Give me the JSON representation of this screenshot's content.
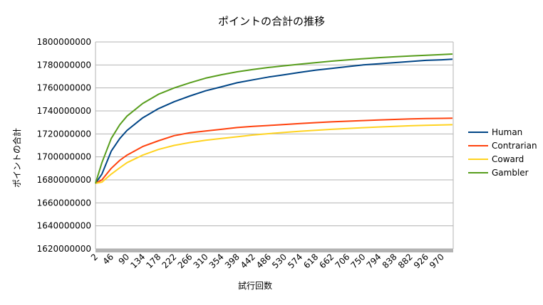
{
  "chart_data": {
    "type": "line",
    "title": "ポイントの合計の推移",
    "xlabel": "試行回数",
    "ylabel": "ポイントの合計",
    "ylim": [
      1620000000,
      1800000000
    ],
    "yticks": [
      1620000000,
      1640000000,
      1660000000,
      1680000000,
      1700000000,
      1720000000,
      1740000000,
      1760000000,
      1780000000,
      1800000000
    ],
    "ytick_labels": [
      "1620000000",
      "1640000000",
      "1660000000",
      "1680000000",
      "1700000000",
      "1720000000",
      "1740000000",
      "1760000000",
      "1780000000",
      "1800000000"
    ],
    "xlim": [
      2,
      1002
    ],
    "xticks": [
      2,
      46,
      90,
      134,
      178,
      222,
      266,
      310,
      354,
      398,
      442,
      486,
      530,
      574,
      618,
      662,
      706,
      750,
      794,
      838,
      882,
      926,
      970
    ],
    "xtick_labels": [
      "2",
      "46",
      "90",
      "134",
      "178",
      "222",
      "266",
      "310",
      "354",
      "398",
      "442",
      "486",
      "530",
      "574",
      "618",
      "662",
      "706",
      "750",
      "794",
      "838",
      "882",
      "926",
      "970"
    ],
    "grid": "horizontal",
    "legend_position": "right",
    "series": [
      {
        "name": "Human",
        "color": "#004586",
        "x": [
          2,
          20,
          46,
          70,
          90,
          134,
          178,
          222,
          266,
          310,
          354,
          398,
          442,
          486,
          530,
          574,
          618,
          662,
          706,
          750,
          794,
          838,
          882,
          926,
          970,
          1000
        ],
        "y": [
          1677000000,
          1685000000,
          1705000000,
          1716000000,
          1723000000,
          1734000000,
          1742000000,
          1748000000,
          1753000000,
          1757500000,
          1761000000,
          1764500000,
          1767000000,
          1769500000,
          1771500000,
          1773500000,
          1775500000,
          1777000000,
          1778500000,
          1780000000,
          1781000000,
          1782000000,
          1783000000,
          1784000000,
          1784500000,
          1785000000
        ]
      },
      {
        "name": "Contrarian",
        "color": "#ff420e",
        "x": [
          2,
          20,
          46,
          70,
          90,
          134,
          178,
          222,
          266,
          310,
          354,
          398,
          442,
          486,
          530,
          574,
          618,
          662,
          706,
          750,
          794,
          838,
          882,
          926,
          970,
          1000
        ],
        "y": [
          1677000000,
          1680000000,
          1690000000,
          1697000000,
          1701500000,
          1709000000,
          1714000000,
          1718500000,
          1721000000,
          1722500000,
          1724000000,
          1725500000,
          1726500000,
          1727300000,
          1728200000,
          1729000000,
          1729800000,
          1730500000,
          1731000000,
          1731600000,
          1732100000,
          1732600000,
          1733000000,
          1733300000,
          1733500000,
          1733600000
        ]
      },
      {
        "name": "Coward",
        "color": "#ffd320",
        "x": [
          2,
          20,
          46,
          70,
          90,
          134,
          178,
          222,
          266,
          310,
          354,
          398,
          442,
          486,
          530,
          574,
          618,
          662,
          706,
          750,
          794,
          838,
          882,
          926,
          970,
          1000
        ],
        "y": [
          1677000000,
          1678000000,
          1685000000,
          1690500000,
          1695000000,
          1701500000,
          1706500000,
          1710000000,
          1712500000,
          1714500000,
          1716000000,
          1717500000,
          1719000000,
          1720200000,
          1721300000,
          1722300000,
          1723200000,
          1724000000,
          1724700000,
          1725400000,
          1726000000,
          1726600000,
          1727100000,
          1727500000,
          1727800000,
          1728000000
        ]
      },
      {
        "name": "Gambler",
        "color": "#579d1c",
        "x": [
          2,
          20,
          46,
          70,
          90,
          134,
          178,
          222,
          266,
          310,
          354,
          398,
          442,
          486,
          530,
          574,
          618,
          662,
          706,
          750,
          794,
          838,
          882,
          926,
          970,
          1000
        ],
        "y": [
          1677000000,
          1695000000,
          1716000000,
          1728000000,
          1735500000,
          1746500000,
          1754500000,
          1760000000,
          1764500000,
          1768500000,
          1771500000,
          1774000000,
          1776000000,
          1777800000,
          1779300000,
          1780700000,
          1782000000,
          1783300000,
          1784400000,
          1785400000,
          1786300000,
          1787100000,
          1787800000,
          1788400000,
          1789000000,
          1789500000
        ]
      }
    ]
  }
}
